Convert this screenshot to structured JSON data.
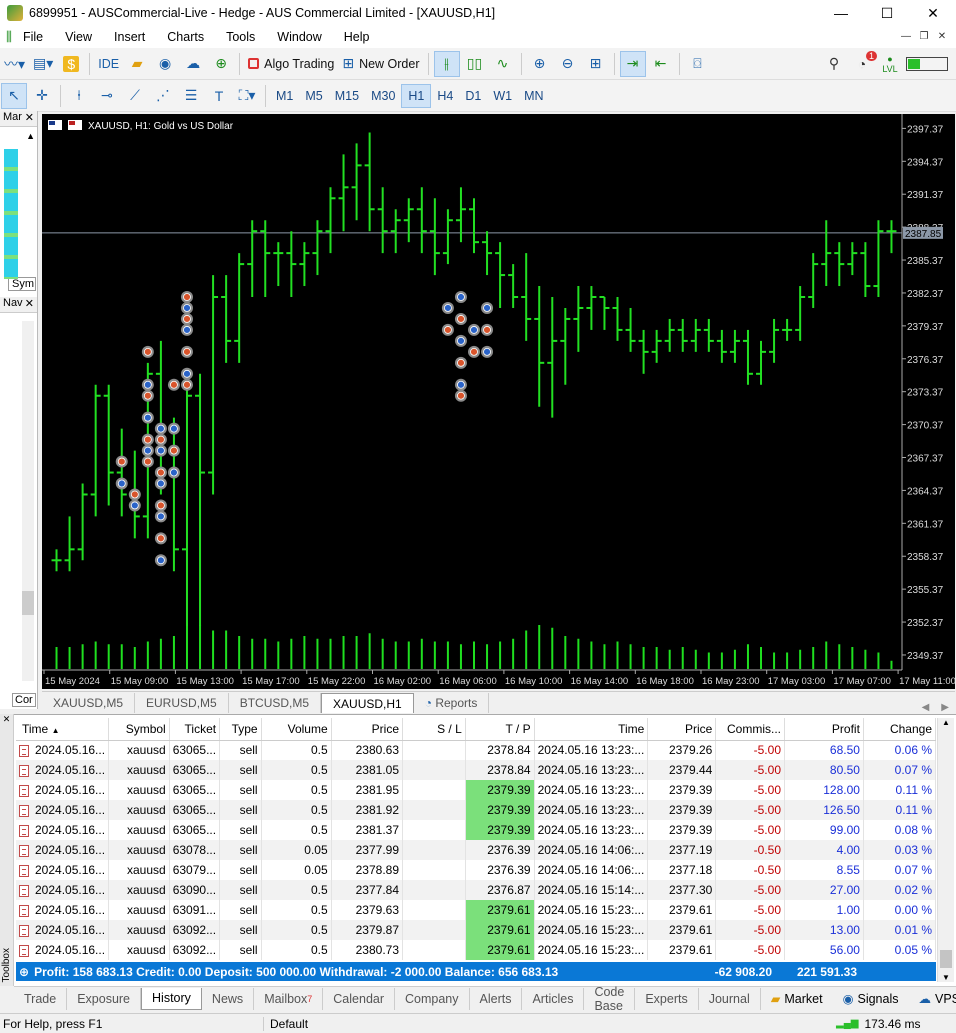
{
  "window": {
    "title": "6899951 - AUSCommercial-Live - Hedge - AUS Commercial Limited - [XAUUSD,H1]"
  },
  "menu": [
    "File",
    "View",
    "Insert",
    "Charts",
    "Tools",
    "Window",
    "Help"
  ],
  "toolbar": {
    "ide_label": "IDE",
    "algo_label": "Algo Trading",
    "new_order_label": "New Order",
    "notif_count": "1",
    "lvl_label": "LVL"
  },
  "timeframes": [
    "M1",
    "M5",
    "M15",
    "M30",
    "H1",
    "H4",
    "D1",
    "W1",
    "MN"
  ],
  "active_timeframe": "H1",
  "left_panel": {
    "market_title": "Mar",
    "symbols_tab": "Sym",
    "nav_title": "Nav",
    "common_tab": "Cor"
  },
  "chart_data": {
    "type": "ohlc",
    "title": "XAUUSD, H1:  Gold vs US Dollar",
    "symbol": "XAUUSD",
    "timeframe": "H1",
    "price_line": 2387.85,
    "price_label": "2387.85",
    "y_ticks": [
      "2397.37",
      "2394.37",
      "2391.37",
      "2388.37",
      "2385.37",
      "2382.37",
      "2379.37",
      "2376.37",
      "2373.37",
      "2370.37",
      "2367.37",
      "2364.37",
      "2361.37",
      "2358.37",
      "2355.37",
      "2352.37",
      "2349.37"
    ],
    "ylim": [
      2348.0,
      2398.5
    ],
    "x_labels": [
      "15 May 2024",
      "15 May 09:00",
      "15 May 13:00",
      "15 May 17:00",
      "15 May 22:00",
      "16 May 02:00",
      "16 May 06:00",
      "16 May 10:00",
      "16 May 14:00",
      "16 May 18:00",
      "16 May 23:00",
      "17 May 03:00",
      "17 May 07:00",
      "17 May 11:00"
    ],
    "bars": [
      [
        2358,
        2359,
        2357,
        2358
      ],
      [
        2358,
        2362,
        2357,
        2359
      ],
      [
        2359,
        2365,
        2358,
        2364
      ],
      [
        2364,
        2374,
        2362,
        2373
      ],
      [
        2373,
        2374,
        2363,
        2366
      ],
      [
        2366,
        2370,
        2362,
        2364
      ],
      [
        2364,
        2368,
        2360,
        2362
      ],
      [
        2362,
        2376,
        2360,
        2375
      ],
      [
        2375,
        2378,
        2364,
        2368
      ],
      [
        2368,
        2371,
        2357,
        2359
      ],
      [
        2359,
        2375,
        2352,
        2373
      ],
      [
        2373,
        2375,
        2352,
        2366
      ],
      [
        2366,
        2384,
        2364,
        2382
      ],
      [
        2382,
        2384,
        2376,
        2378
      ],
      [
        2378,
        2386,
        2376,
        2385
      ],
      [
        2385,
        2389,
        2382,
        2388
      ],
      [
        2388,
        2389,
        2382,
        2386
      ],
      [
        2386,
        2387,
        2383,
        2386
      ],
      [
        2386,
        2388,
        2382,
        2385
      ],
      [
        2385,
        2387,
        2383,
        2386
      ],
      [
        2386,
        2389,
        2384,
        2388
      ],
      [
        2388,
        2392,
        2386,
        2391
      ],
      [
        2391,
        2395,
        2388,
        2392
      ],
      [
        2392,
        2396,
        2389,
        2394
      ],
      [
        2394,
        2397,
        2388,
        2390
      ],
      [
        2390,
        2392,
        2386,
        2388
      ],
      [
        2388,
        2390,
        2386,
        2389
      ],
      [
        2389,
        2391,
        2387,
        2390
      ],
      [
        2390,
        2392,
        2386,
        2388
      ],
      [
        2388,
        2391,
        2384,
        2386
      ],
      [
        2386,
        2390,
        2385,
        2389
      ],
      [
        2389,
        2392,
        2387,
        2390
      ],
      [
        2390,
        2391,
        2386,
        2387
      ],
      [
        2387,
        2388,
        2384,
        2386
      ],
      [
        2386,
        2387,
        2381,
        2384
      ],
      [
        2384,
        2385,
        2381,
        2382
      ],
      [
        2382,
        2386,
        2378,
        2380
      ],
      [
        2380,
        2383,
        2372,
        2376
      ],
      [
        2376,
        2382,
        2371,
        2378
      ],
      [
        2378,
        2381,
        2374,
        2380
      ],
      [
        2380,
        2383,
        2377,
        2381
      ],
      [
        2381,
        2383,
        2379,
        2382
      ],
      [
        2382,
        2382,
        2379,
        2381
      ],
      [
        2381,
        2382,
        2378,
        2379
      ],
      [
        2379,
        2381,
        2377,
        2378
      ],
      [
        2378,
        2379,
        2375,
        2377
      ],
      [
        2377,
        2379,
        2376,
        2378
      ],
      [
        2378,
        2380,
        2377,
        2379
      ],
      [
        2379,
        2380,
        2377,
        2378
      ],
      [
        2378,
        2380,
        2377,
        2379
      ],
      [
        2379,
        2380,
        2377,
        2378
      ],
      [
        2378,
        2379,
        2376,
        2377
      ],
      [
        2377,
        2379,
        2376,
        2378
      ],
      [
        2378,
        2379,
        2374,
        2375
      ],
      [
        2375,
        2378,
        2374,
        2377
      ],
      [
        2377,
        2380,
        2376,
        2379
      ],
      [
        2379,
        2380,
        2378,
        2379
      ],
      [
        2379,
        2383,
        2378,
        2382
      ],
      [
        2382,
        2386,
        2381,
        2385
      ],
      [
        2385,
        2389,
        2383,
        2386
      ],
      [
        2386,
        2387,
        2383,
        2385
      ],
      [
        2385,
        2387,
        2384,
        2386
      ],
      [
        2386,
        2387,
        2382,
        2383
      ],
      [
        2383,
        2389,
        2382,
        2388
      ],
      [
        2388,
        2389,
        2386,
        2388
      ]
    ],
    "volume_levels": [
      0.4,
      0.4,
      0.45,
      0.5,
      0.45,
      0.45,
      0.4,
      0.5,
      0.55,
      0.6,
      0.85,
      0.8,
      0.7,
      0.7,
      0.6,
      0.55,
      0.55,
      0.5,
      0.55,
      0.6,
      0.55,
      0.55,
      0.6,
      0.6,
      0.65,
      0.55,
      0.5,
      0.5,
      0.55,
      0.5,
      0.5,
      0.45,
      0.5,
      0.45,
      0.5,
      0.55,
      0.7,
      0.8,
      0.75,
      0.6,
      0.55,
      0.5,
      0.45,
      0.5,
      0.45,
      0.4,
      0.4,
      0.35,
      0.4,
      0.35,
      0.3,
      0.3,
      0.35,
      0.45,
      0.4,
      0.3,
      0.3,
      0.35,
      0.4,
      0.5,
      0.45,
      0.4,
      0.35,
      0.3,
      0.15
    ],
    "trade_markers": [
      {
        "bar": 5,
        "price": 2367
      },
      {
        "bar": 5,
        "price": 2365
      },
      {
        "bar": 6,
        "price": 2364
      },
      {
        "bar": 6,
        "price": 2363
      },
      {
        "bar": 7,
        "price": 2377
      },
      {
        "bar": 7,
        "price": 2374
      },
      {
        "bar": 7,
        "price": 2373
      },
      {
        "bar": 7,
        "price": 2371
      },
      {
        "bar": 7,
        "price": 2369
      },
      {
        "bar": 7,
        "price": 2368
      },
      {
        "bar": 7,
        "price": 2367
      },
      {
        "bar": 8,
        "price": 2370
      },
      {
        "bar": 8,
        "price": 2369
      },
      {
        "bar": 8,
        "price": 2368
      },
      {
        "bar": 8,
        "price": 2366
      },
      {
        "bar": 8,
        "price": 2365
      },
      {
        "bar": 8,
        "price": 2363
      },
      {
        "bar": 8,
        "price": 2362
      },
      {
        "bar": 8,
        "price": 2360
      },
      {
        "bar": 8,
        "price": 2358
      },
      {
        "bar": 9,
        "price": 2374
      },
      {
        "bar": 9,
        "price": 2370
      },
      {
        "bar": 9,
        "price": 2368
      },
      {
        "bar": 9,
        "price": 2366
      },
      {
        "bar": 10,
        "price": 2382
      },
      {
        "bar": 10,
        "price": 2381
      },
      {
        "bar": 10,
        "price": 2380
      },
      {
        "bar": 10,
        "price": 2379
      },
      {
        "bar": 10,
        "price": 2377
      },
      {
        "bar": 10,
        "price": 2375
      },
      {
        "bar": 10,
        "price": 2374
      },
      {
        "bar": 30,
        "price": 2381
      },
      {
        "bar": 30,
        "price": 2379
      },
      {
        "bar": 31,
        "price": 2382
      },
      {
        "bar": 31,
        "price": 2380
      },
      {
        "bar": 31,
        "price": 2378
      },
      {
        "bar": 31,
        "price": 2376
      },
      {
        "bar": 31,
        "price": 2374
      },
      {
        "bar": 31,
        "price": 2373
      },
      {
        "bar": 32,
        "price": 2379
      },
      {
        "bar": 32,
        "price": 2377
      },
      {
        "bar": 33,
        "price": 2381
      },
      {
        "bar": 33,
        "price": 2379
      },
      {
        "bar": 33,
        "price": 2377
      }
    ]
  },
  "chart_tabs": [
    "XAUUSD,M5",
    "EURUSD,M5",
    "BTCUSD,M5",
    "XAUUSD,H1",
    "Reports"
  ],
  "active_chart_tab": "XAUUSD,H1",
  "history": {
    "columns": [
      "Time",
      "Symbol",
      "Ticket",
      "Type",
      "Volume",
      "Price",
      "S / L",
      "T / P",
      "Time",
      "Price",
      "Commis...",
      "Profit",
      "Change"
    ],
    "rows": [
      {
        "time": "2024.05.16...",
        "symbol": "xauusd",
        "ticket": "63065...",
        "type": "sell",
        "volume": "0.5",
        "price": "2380.63",
        "sl": "",
        "tp": "2378.84",
        "tp_hit": false,
        "ctime": "2024.05.16 13:23:...",
        "cprice": "2379.26",
        "commission": "-5.00",
        "profit": "68.50",
        "change": "0.06 %"
      },
      {
        "time": "2024.05.16...",
        "symbol": "xauusd",
        "ticket": "63065...",
        "type": "sell",
        "volume": "0.5",
        "price": "2381.05",
        "sl": "",
        "tp": "2378.84",
        "tp_hit": false,
        "ctime": "2024.05.16 13:23:...",
        "cprice": "2379.44",
        "commission": "-5.00",
        "profit": "80.50",
        "change": "0.07 %"
      },
      {
        "time": "2024.05.16...",
        "symbol": "xauusd",
        "ticket": "63065...",
        "type": "sell",
        "volume": "0.5",
        "price": "2381.95",
        "sl": "",
        "tp": "2379.39",
        "tp_hit": true,
        "ctime": "2024.05.16 13:23:...",
        "cprice": "2379.39",
        "commission": "-5.00",
        "profit": "128.00",
        "change": "0.11 %"
      },
      {
        "time": "2024.05.16...",
        "symbol": "xauusd",
        "ticket": "63065...",
        "type": "sell",
        "volume": "0.5",
        "price": "2381.92",
        "sl": "",
        "tp": "2379.39",
        "tp_hit": true,
        "ctime": "2024.05.16 13:23:...",
        "cprice": "2379.39",
        "commission": "-5.00",
        "profit": "126.50",
        "change": "0.11 %"
      },
      {
        "time": "2024.05.16...",
        "symbol": "xauusd",
        "ticket": "63065...",
        "type": "sell",
        "volume": "0.5",
        "price": "2381.37",
        "sl": "",
        "tp": "2379.39",
        "tp_hit": true,
        "ctime": "2024.05.16 13:23:...",
        "cprice": "2379.39",
        "commission": "-5.00",
        "profit": "99.00",
        "change": "0.08 %"
      },
      {
        "time": "2024.05.16...",
        "symbol": "xauusd",
        "ticket": "63078...",
        "type": "sell",
        "volume": "0.05",
        "price": "2377.99",
        "sl": "",
        "tp": "2376.39",
        "tp_hit": false,
        "ctime": "2024.05.16 14:06:...",
        "cprice": "2377.19",
        "commission": "-0.50",
        "profit": "4.00",
        "change": "0.03 %"
      },
      {
        "time": "2024.05.16...",
        "symbol": "xauusd",
        "ticket": "63079...",
        "type": "sell",
        "volume": "0.05",
        "price": "2378.89",
        "sl": "",
        "tp": "2376.39",
        "tp_hit": false,
        "ctime": "2024.05.16 14:06:...",
        "cprice": "2377.18",
        "commission": "-0.50",
        "profit": "8.55",
        "change": "0.07 %"
      },
      {
        "time": "2024.05.16...",
        "symbol": "xauusd",
        "ticket": "63090...",
        "type": "sell",
        "volume": "0.5",
        "price": "2377.84",
        "sl": "",
        "tp": "2376.87",
        "tp_hit": false,
        "ctime": "2024.05.16 15:14:...",
        "cprice": "2377.30",
        "commission": "-5.00",
        "profit": "27.00",
        "change": "0.02 %"
      },
      {
        "time": "2024.05.16...",
        "symbol": "xauusd",
        "ticket": "63091...",
        "type": "sell",
        "volume": "0.5",
        "price": "2379.63",
        "sl": "",
        "tp": "2379.61",
        "tp_hit": true,
        "ctime": "2024.05.16 15:23:...",
        "cprice": "2379.61",
        "commission": "-5.00",
        "profit": "1.00",
        "change": "0.00 %"
      },
      {
        "time": "2024.05.16...",
        "symbol": "xauusd",
        "ticket": "63092...",
        "type": "sell",
        "volume": "0.5",
        "price": "2379.87",
        "sl": "",
        "tp": "2379.61",
        "tp_hit": true,
        "ctime": "2024.05.16 15:23:...",
        "cprice": "2379.61",
        "commission": "-5.00",
        "profit": "13.00",
        "change": "0.01 %"
      },
      {
        "time": "2024.05.16...",
        "symbol": "xauusd",
        "ticket": "63092...",
        "type": "sell",
        "volume": "0.5",
        "price": "2380.73",
        "sl": "",
        "tp": "2379.61",
        "tp_hit": true,
        "ctime": "2024.05.16 15:23:...",
        "cprice": "2379.61",
        "commission": "-5.00",
        "profit": "56.00",
        "change": "0.05 %"
      }
    ]
  },
  "summary": {
    "text": "Profit: 158 683.13  Credit: 0.00  Deposit: 500 000.00  Withdrawal: -2 000.00  Balance: 656 683.13",
    "commission": "-62 908.20",
    "profit": "221 591.33"
  },
  "toolbox_label": "Toolbox",
  "bottom_tabs": [
    "Trade",
    "Exposure",
    "History",
    "News",
    "Mailbox",
    "Calendar",
    "Company",
    "Alerts",
    "Articles",
    "Code Base",
    "Experts",
    "Journal"
  ],
  "active_bottom_tab": "History",
  "mailbox_count": "7",
  "bottom_right": {
    "market": "Market",
    "signals": "Signals",
    "vps": "VPS"
  },
  "status": {
    "help": "For Help, press F1",
    "profile": "Default",
    "ping": "173.46 ms"
  }
}
